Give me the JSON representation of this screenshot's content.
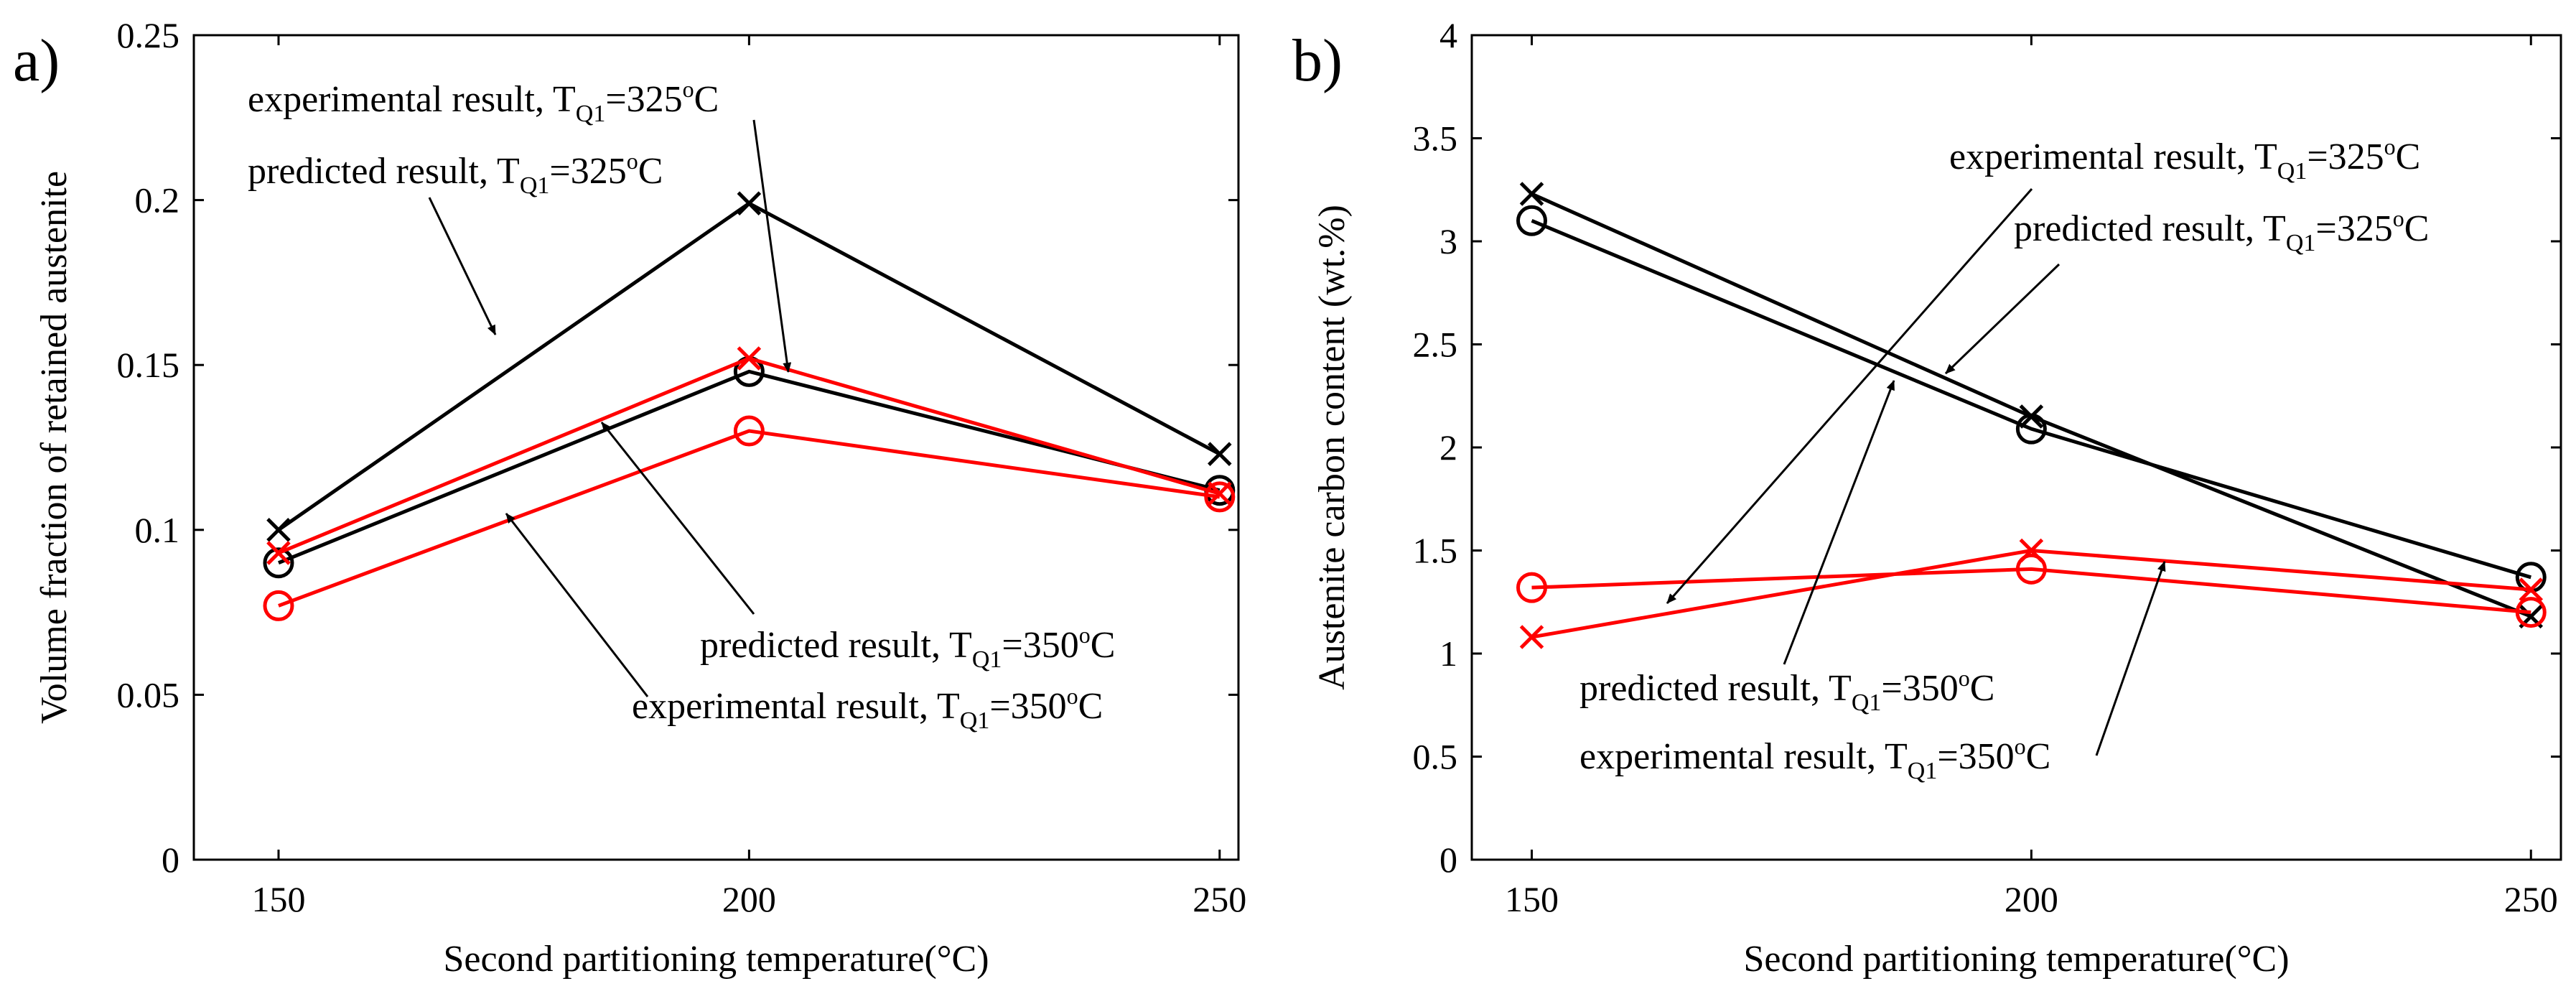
{
  "panel_labels": [
    "a)",
    "b)"
  ],
  "chart_data": [
    {
      "type": "line",
      "xlabel": "Second partitioning temperature(°C)",
      "ylabel": "Volume fraction of retained austenite",
      "xlim": [
        141,
        252
      ],
      "ylim": [
        0,
        0.25
      ],
      "xticks": [
        150,
        200,
        250
      ],
      "yticks": [
        0,
        0.05,
        0.1,
        0.15,
        0.2,
        0.25
      ],
      "ytick_labels": [
        "0",
        "0.05",
        "0.1",
        "0.15",
        "0.2",
        "0.25"
      ],
      "grid": false,
      "x": [
        150,
        200,
        250
      ],
      "series": [
        {
          "label": "experimental result, T_Q1=325°C",
          "color": "#000000",
          "marker": "x",
          "values": [
            0.1,
            0.199,
            0.123
          ]
        },
        {
          "label": "predicted result, T_Q1=325°C",
          "color": "#000000",
          "marker": "o",
          "values": [
            0.09,
            0.148,
            0.112
          ]
        },
        {
          "label": "predicted result, T_Q1=350°C",
          "color": "#ff0000",
          "marker": "x",
          "values": [
            0.093,
            0.152,
            0.111
          ]
        },
        {
          "label": "experimental result, T_Q1=350°C",
          "color": "#ff0000",
          "marker": "o",
          "values": [
            0.077,
            0.13,
            0.11
          ]
        }
      ],
      "annotations": [
        {
          "main": "experimental result, T",
          "sub": "Q1",
          "tail": "=325",
          "sup": "o",
          "unit": "C"
        },
        {
          "main": "predicted result, T",
          "sub": "Q1",
          "tail": "=325",
          "sup": "o",
          "unit": "C"
        },
        {
          "main": "predicted result, T",
          "sub": "Q1",
          "tail": "=350",
          "sup": "o",
          "unit": "C"
        },
        {
          "main": "experimental result, T",
          "sub": "Q1",
          "tail": "=350",
          "sup": "o",
          "unit": "C"
        }
      ]
    },
    {
      "type": "line",
      "xlabel": "Second partitioning temperature(°C)",
      "ylabel": "Austenite carbon content (wt.%)",
      "xlim": [
        144,
        253
      ],
      "ylim": [
        0,
        4
      ],
      "xticks": [
        150,
        200,
        250
      ],
      "yticks": [
        0,
        0.5,
        1,
        1.5,
        2,
        2.5,
        3,
        3.5,
        4
      ],
      "ytick_labels": [
        "0",
        "0.5",
        "1",
        "1.5",
        "2",
        "2.5",
        "3",
        "3.5",
        "4"
      ],
      "grid": false,
      "x": [
        150,
        200,
        250
      ],
      "series": [
        {
          "label": "experimental result, T_Q1=325°C",
          "color": "#000000",
          "marker": "x",
          "values": [
            3.23,
            2.15,
            1.18
          ]
        },
        {
          "label": "predicted result, T_Q1=325°C",
          "color": "#000000",
          "marker": "o",
          "values": [
            3.1,
            2.09,
            1.37
          ]
        },
        {
          "label": "predicted result, T_Q1=350°C",
          "color": "#ff0000",
          "marker": "x",
          "values": [
            1.08,
            1.5,
            1.31
          ]
        },
        {
          "label": "experimental result, T_Q1=350°C",
          "color": "#ff0000",
          "marker": "o",
          "values": [
            1.32,
            1.41,
            1.2
          ]
        }
      ],
      "annotations": [
        {
          "main": "experimental result, T",
          "sub": "Q1",
          "tail": "=325",
          "sup": "o",
          "unit": "C"
        },
        {
          "main": "predicted result, T",
          "sub": "Q1",
          "tail": "=325",
          "sup": "o",
          "unit": "C"
        },
        {
          "main": "predicted result, T",
          "sub": "Q1",
          "tail": "=350",
          "sup": "o",
          "unit": "C"
        },
        {
          "main": "experimental result, T",
          "sub": "Q1",
          "tail": "=350",
          "sup": "o",
          "unit": "C"
        }
      ]
    }
  ]
}
